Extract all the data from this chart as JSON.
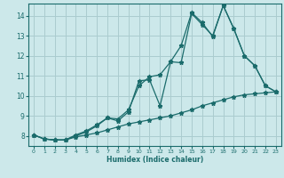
{
  "xlabel": "Humidex (Indice chaleur)",
  "xlim": [
    -0.5,
    23.5
  ],
  "ylim": [
    7.5,
    14.6
  ],
  "yticks": [
    8,
    9,
    10,
    11,
    12,
    13,
    14
  ],
  "xticks": [
    0,
    1,
    2,
    3,
    4,
    5,
    6,
    7,
    8,
    9,
    10,
    11,
    12,
    13,
    14,
    15,
    16,
    17,
    18,
    19,
    20,
    21,
    22,
    23
  ],
  "bg_color": "#cce8ea",
  "grid_color": "#aacccf",
  "line_color": "#1a6b6b",
  "line1_x": [
    0,
    1,
    2,
    3,
    4,
    5,
    6,
    7,
    8,
    9,
    10,
    11,
    12,
    13,
    14,
    15,
    16,
    17,
    18,
    19,
    20,
    21,
    22,
    23
  ],
  "line1_y": [
    8.05,
    7.85,
    7.8,
    7.8,
    7.95,
    8.05,
    8.15,
    8.3,
    8.45,
    8.6,
    8.7,
    8.8,
    8.9,
    9.0,
    9.15,
    9.3,
    9.5,
    9.65,
    9.8,
    9.95,
    10.05,
    10.1,
    10.15,
    10.2
  ],
  "line2_x": [
    0,
    1,
    2,
    3,
    4,
    5,
    6,
    7,
    8,
    9,
    10,
    11,
    12,
    13,
    14,
    15,
    16,
    17,
    18,
    19,
    20,
    21,
    22,
    23
  ],
  "line2_y": [
    8.05,
    7.85,
    7.8,
    7.8,
    8.0,
    8.2,
    8.5,
    8.9,
    8.75,
    9.2,
    10.75,
    10.8,
    9.5,
    11.7,
    11.65,
    14.1,
    13.55,
    13.0,
    14.5,
    13.35,
    12.0,
    11.5,
    10.5,
    10.2
  ],
  "line3_x": [
    0,
    1,
    2,
    3,
    4,
    5,
    6,
    7,
    8,
    9,
    10,
    11,
    12,
    13,
    14,
    15,
    16,
    17,
    18,
    19,
    20,
    21,
    22,
    23
  ],
  "line3_y": [
    8.05,
    7.85,
    7.8,
    7.8,
    8.05,
    8.25,
    8.55,
    8.9,
    8.85,
    9.3,
    10.5,
    10.95,
    11.05,
    11.7,
    12.5,
    14.15,
    13.65,
    12.95,
    14.5,
    13.35,
    12.0,
    11.5,
    10.5,
    10.2
  ]
}
